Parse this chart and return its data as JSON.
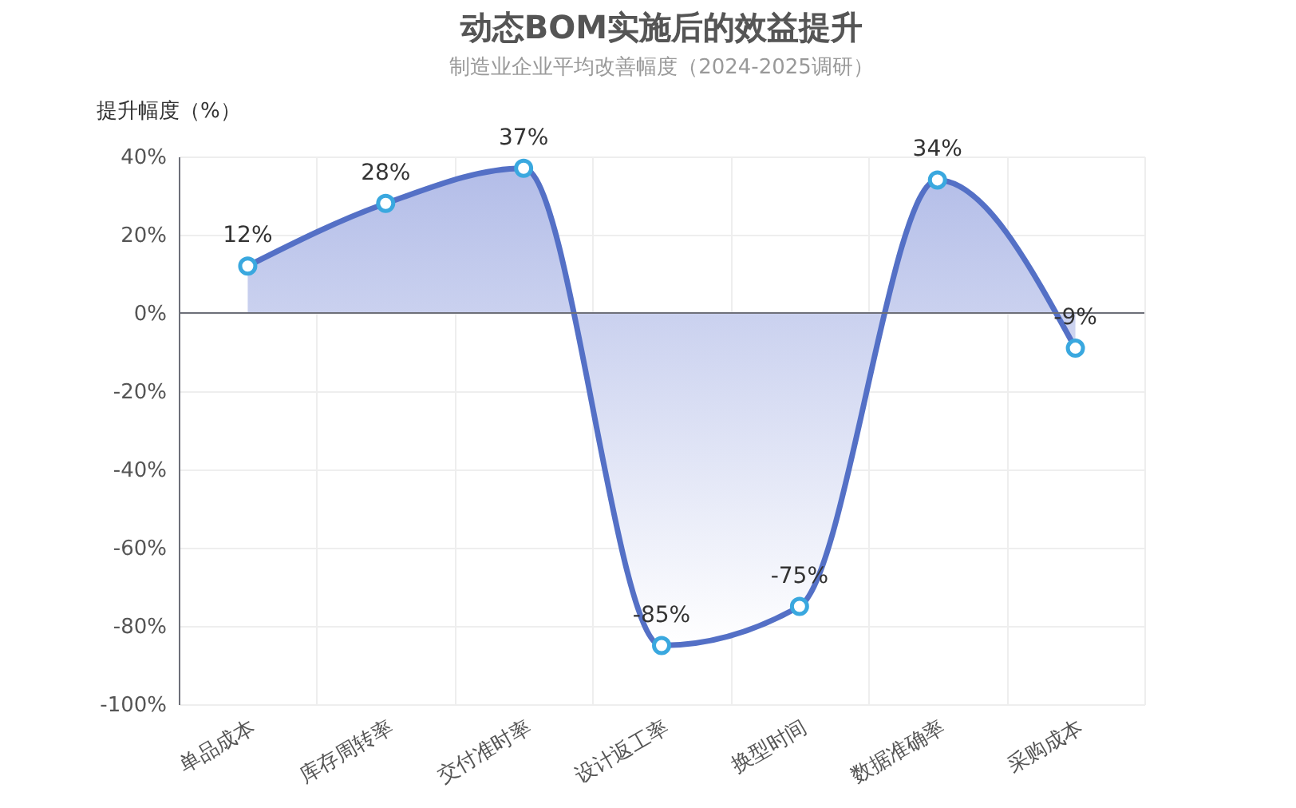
{
  "chart_data": {
    "type": "area",
    "title": "动态BOM实施后的效益提升",
    "subtitle": "制造业企业平均改善幅度（2024-2025调研）",
    "ylabel": "提升幅度（%）",
    "categories": [
      "单品成本",
      "库存周转率",
      "交付准时率",
      "设计返工率",
      "换型时间",
      "数据准确率",
      "采购成本"
    ],
    "series": [
      {
        "color": "#5470c6",
        "values": [
          12,
          28,
          37,
          -85,
          -75,
          34,
          -9
        ],
        "value_labels": [
          "12%",
          "28%",
          "37%",
          "-85%",
          "-75%",
          "34%",
          "-9%"
        ]
      }
    ],
    "ylim": [
      -100,
      40
    ],
    "yticks": [
      {
        "value": -100,
        "label": "-100%"
      },
      {
        "value": -80,
        "label": "-80%"
      },
      {
        "value": -60,
        "label": "-60%"
      },
      {
        "value": -40,
        "label": "-40%"
      },
      {
        "value": -20,
        "label": "-20%"
      },
      {
        "value": 0,
        "label": "0%"
      },
      {
        "value": 20,
        "label": "20%"
      },
      {
        "value": 40,
        "label": "40%"
      }
    ],
    "ref_lines": [
      {
        "axis": "y",
        "value": 0,
        "color": "#6e7079"
      }
    ],
    "grid": true,
    "marker": "circle"
  }
}
